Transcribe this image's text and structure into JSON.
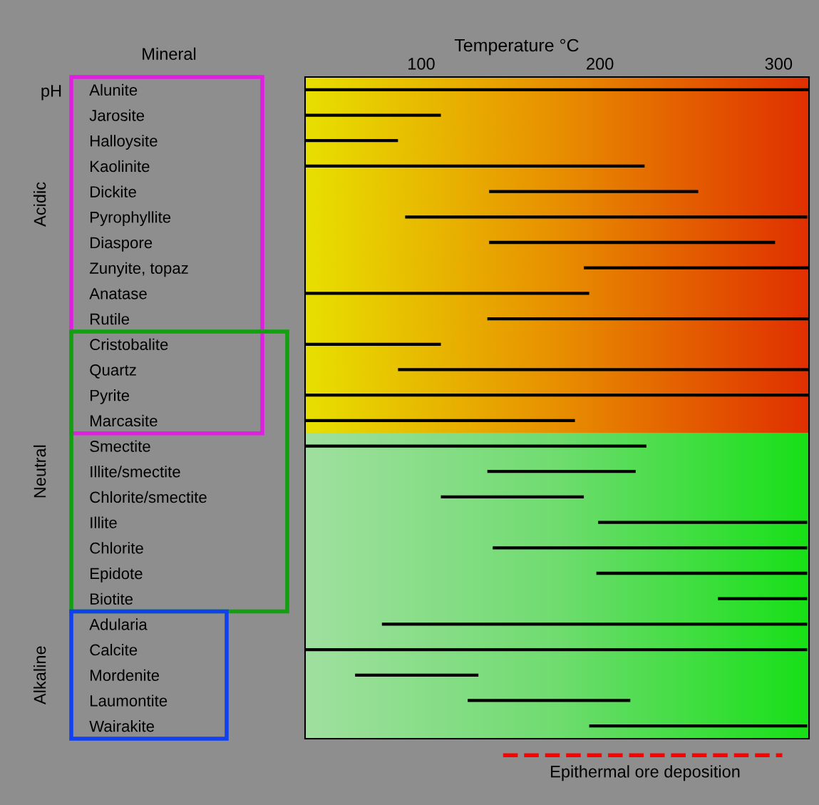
{
  "chart_data": {
    "type": "bar",
    "orientation": "horizontal",
    "xlabel": "Temperature °C",
    "categories": [
      "Alunite",
      "Jarosite",
      "Halloysite",
      "Kaolinite",
      "Dickite",
      "Pyrophyllite",
      "Diaspore",
      "Zunyite, topaz",
      "Anatase",
      "Rutile",
      "Cristobalite",
      "Quartz",
      "Pyrite",
      "Marcasite",
      "Smectite",
      "Illite/smectite",
      "Chlorite/smectite",
      "Illite",
      "Chlorite",
      "Epidote",
      "Biotite",
      "Adularia",
      "Calcite",
      "Mordenite",
      "Laumontite",
      "Wairakite"
    ],
    "base": [
      35,
      35,
      35,
      35,
      138,
      91,
      138,
      191,
      35,
      137,
      35,
      87,
      35,
      35,
      35,
      137,
      111,
      199,
      140,
      198,
      266,
      78,
      35,
      63,
      126,
      194
    ],
    "values": [
      282,
      76,
      52,
      190,
      117,
      225,
      160,
      126,
      159,
      180,
      76,
      230,
      282,
      151,
      191,
      83,
      80,
      117,
      176,
      118,
      50,
      238,
      281,
      69,
      91,
      122
    ],
    "color": "#000000",
    "xlim": [
      35,
      317
    ],
    "xticks": [
      100,
      200,
      300
    ],
    "grid": false,
    "annotations": [
      "Mineral",
      "pH",
      "Acidic",
      "Neutral",
      "Alkaline",
      "Epithermal ore deposition"
    ]
  }
}
